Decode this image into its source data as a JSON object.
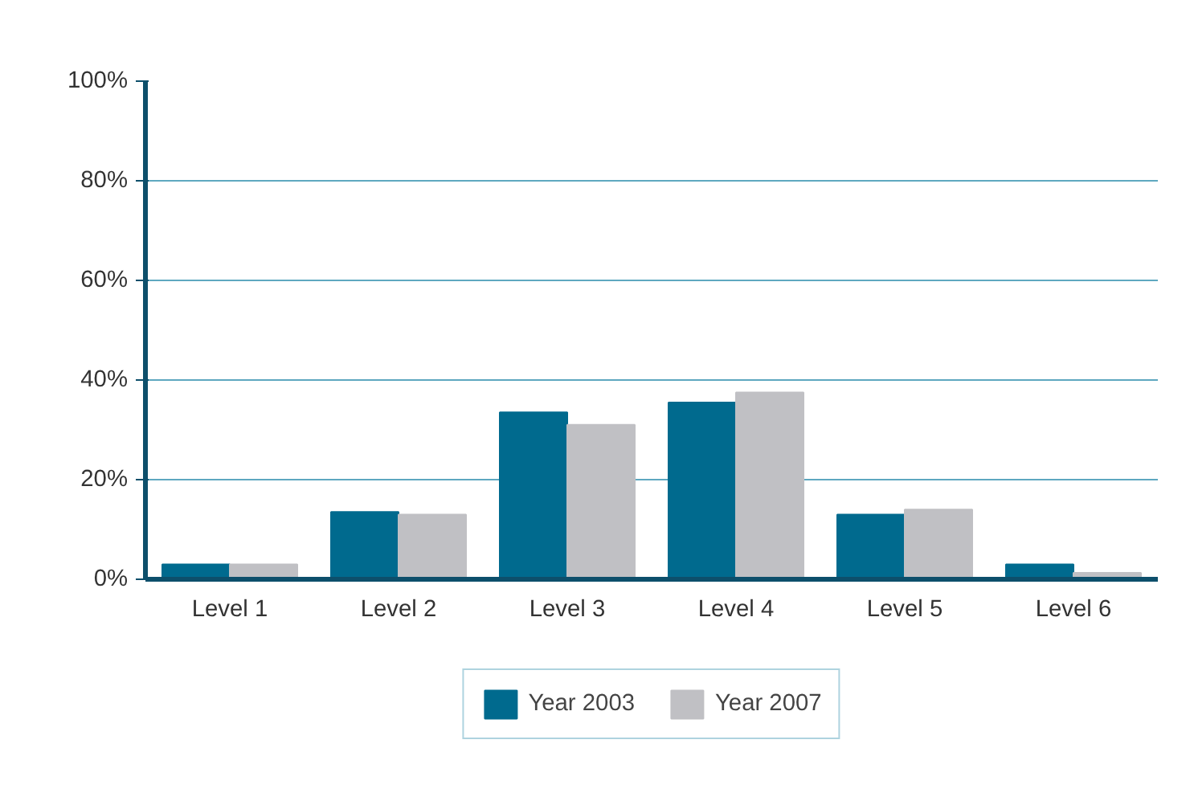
{
  "chart_data": {
    "type": "bar",
    "categories": [
      "Level 1",
      "Level 2",
      "Level 3",
      "Level 4",
      "Level 5",
      "Level 6"
    ],
    "series": [
      {
        "name": "Year 2003",
        "color": "#006a8e",
        "values": [
          3,
          13.5,
          33.5,
          35.5,
          13,
          3
        ]
      },
      {
        "name": "Year 2007",
        "color": "#c0c0c4",
        "values": [
          3,
          13,
          31,
          37.5,
          14,
          1.3
        ]
      }
    ],
    "ylim": [
      0,
      100
    ],
    "yticks": [
      {
        "value": 0,
        "label": "0%"
      },
      {
        "value": 20,
        "label": "20%"
      },
      {
        "value": 40,
        "label": "40%"
      },
      {
        "value": 60,
        "label": "60%"
      },
      {
        "value": 80,
        "label": "80%"
      },
      {
        "value": 100,
        "label": "100%"
      }
    ],
    "grid": "y",
    "legend": "bottom"
  }
}
